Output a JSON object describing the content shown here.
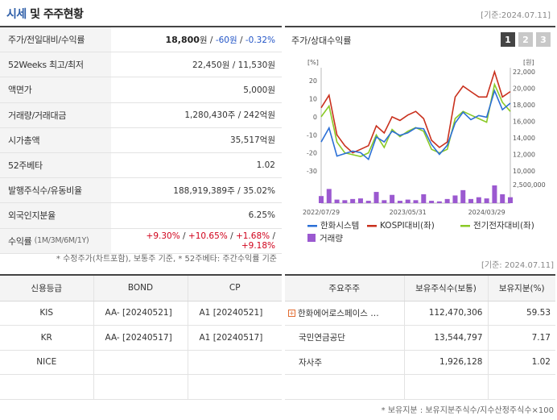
{
  "header": {
    "title_accent": "시세",
    "title_rest": " 및 주주현황",
    "asof": "[기준:2024.07.11]"
  },
  "summary": [
    {
      "label": "주가/전일대비/수익률",
      "price": "18,800",
      "unit": "원",
      "sep1": " / ",
      "change": "-60원",
      "sep2": " / ",
      "rate": "-0.32%"
    },
    {
      "label": "52Weeks 최고/최저",
      "value": "22,450원 / 11,530원"
    },
    {
      "label": "액면가",
      "value": "5,000원"
    },
    {
      "label": "거래량/거래대금",
      "value": "1,280,430주 / 242억원"
    },
    {
      "label": "시가총액",
      "value": "35,517억원"
    },
    {
      "label": "52주베타",
      "value": "1.02"
    },
    {
      "label": "발행주식수/유동비율",
      "value": "188,919,389주 / 35.02%"
    },
    {
      "label": "외국인지분율",
      "value": "6.25%"
    },
    {
      "label": "수익률",
      "label_sub": "(1M/3M/6M/1Y)",
      "r1": "+9.30%",
      "r2": "+10.65%",
      "r3": "+1.68%",
      "r4": "+9.18%",
      "slash": " / "
    }
  ],
  "chart_panel": {
    "title": "주가/상대수익률",
    "pages": [
      "1",
      "2",
      "3"
    ],
    "active_page": "1"
  },
  "chart_data": {
    "type": "line",
    "left_axis_unit": "[%]",
    "right_axis_unit": "[원]",
    "left_ticks": [
      20,
      10,
      0,
      -10,
      -20,
      -30
    ],
    "right_ticks": [
      "22,000",
      "20,000",
      "18,000",
      "16,000",
      "14,000",
      "12,000",
      "10,000"
    ],
    "right_range": [
      10000,
      22000
    ],
    "left_range": [
      -30,
      25
    ],
    "volume_tick": "2,500,000",
    "volume_max": 3000000,
    "x_labels": [
      "2022/07/29",
      "2023/05/31",
      "2024/03/29"
    ],
    "series": [
      {
        "name": "한화시스템",
        "color": "#2b6fd6",
        "values": [
          13500,
          15200,
          11800,
          12100,
          12400,
          12200,
          11400,
          14100,
          13500,
          14800,
          14300,
          14600,
          15200,
          15100,
          13200,
          12000,
          13100,
          15800,
          17100,
          16200,
          16700,
          16500,
          19700,
          17400,
          18200
        ]
      },
      {
        "name": "KOSPI대비(좌)",
        "color": "#c9301d",
        "values": [
          5,
          12,
          -10,
          -16,
          -20,
          -18,
          -16,
          -5,
          -9,
          0,
          -2,
          1,
          3,
          -1,
          -13,
          -17,
          -14,
          11,
          17,
          14,
          11,
          11,
          25,
          11,
          14
        ]
      },
      {
        "name": "전기전자대비(좌)",
        "color": "#8ac926",
        "values": [
          0,
          6,
          -14,
          -20,
          -21,
          -22,
          -20,
          -10,
          -17,
          -7,
          -11,
          -8,
          -6,
          -8,
          -18,
          -20,
          -18,
          -1,
          3,
          1,
          -1,
          -3,
          18,
          8,
          3
        ]
      }
    ],
    "volume": {
      "name": "거래량",
      "color": "#9b59d0",
      "values": [
        1200000,
        2400000,
        600000,
        500000,
        700000,
        800000,
        400000,
        1900000,
        500000,
        1400000,
        400000,
        600000,
        500000,
        1500000,
        400000,
        300000,
        700000,
        1300000,
        2200000,
        700000,
        1000000,
        800000,
        3000000,
        1500000,
        1000000
      ]
    }
  },
  "footnote1": "* 수정주가(차트포함), 보통주 기준, * 52주베타: 주간수익률 기준",
  "asof2": "[기준: 2024.07.11]",
  "credit": {
    "headers": [
      "신용등급",
      "BOND",
      "CP"
    ],
    "rows": [
      {
        "agency": "KIS",
        "bond": "AA-  [20240521]",
        "cp": "A1  [20240521]"
      },
      {
        "agency": "KR",
        "bond": "AA-  [20240517]",
        "cp": "A1  [20240517]"
      },
      {
        "agency": "NICE",
        "bond": "",
        "cp": ""
      },
      {
        "agency": "",
        "bond": "",
        "cp": ""
      }
    ]
  },
  "holders": {
    "headers": [
      "주요주주",
      "보유주식수(보통)",
      "보유지분(%)"
    ],
    "rows": [
      {
        "name": "한화에어로스페이스 …",
        "shares": "112,470,306",
        "pct": "59.53",
        "expand": "+"
      },
      {
        "name": "국민연금공단",
        "shares": "13,544,797",
        "pct": "7.17"
      },
      {
        "name": "자사주",
        "shares": "1,926,128",
        "pct": "1.02"
      },
      {
        "name": "",
        "shares": "",
        "pct": ""
      }
    ]
  },
  "footnote2": "* 보유지분 : 보유지분주식수/지수산정주식수×100"
}
